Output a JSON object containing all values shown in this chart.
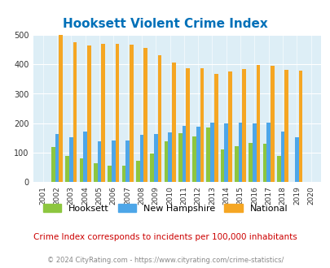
{
  "title": "Hooksett Violent Crime Index",
  "years": [
    2001,
    2002,
    2003,
    2004,
    2005,
    2006,
    2007,
    2008,
    2009,
    2010,
    2011,
    2012,
    2013,
    2014,
    2015,
    2016,
    2017,
    2018,
    2019,
    2020
  ],
  "hooksett": [
    0,
    120,
    90,
    80,
    65,
    57,
    57,
    73,
    97,
    138,
    167,
    155,
    185,
    110,
    123,
    133,
    130,
    88,
    0,
    0
  ],
  "new_hampshire": [
    0,
    163,
    152,
    172,
    140,
    142,
    142,
    160,
    163,
    170,
    190,
    188,
    203,
    200,
    203,
    200,
    203,
    173,
    152,
    0
  ],
  "national": [
    0,
    499,
    476,
    463,
    469,
    469,
    466,
    455,
    432,
    405,
    387,
    387,
    367,
    376,
    383,
    397,
    394,
    381,
    379,
    0
  ],
  "hooksett_color": "#8dc63f",
  "nh_color": "#4da6e8",
  "national_color": "#f5a623",
  "bg_color": "#ddeef6",
  "title_color": "#0070b8",
  "ylabel_max": 500,
  "yticks": [
    0,
    100,
    200,
    300,
    400,
    500
  ],
  "subtitle": "Crime Index corresponds to incidents per 100,000 inhabitants",
  "footer": "© 2024 CityRating.com - https://www.cityrating.com/crime-statistics/",
  "subtitle_color": "#cc0000",
  "footer_color": "#888888"
}
